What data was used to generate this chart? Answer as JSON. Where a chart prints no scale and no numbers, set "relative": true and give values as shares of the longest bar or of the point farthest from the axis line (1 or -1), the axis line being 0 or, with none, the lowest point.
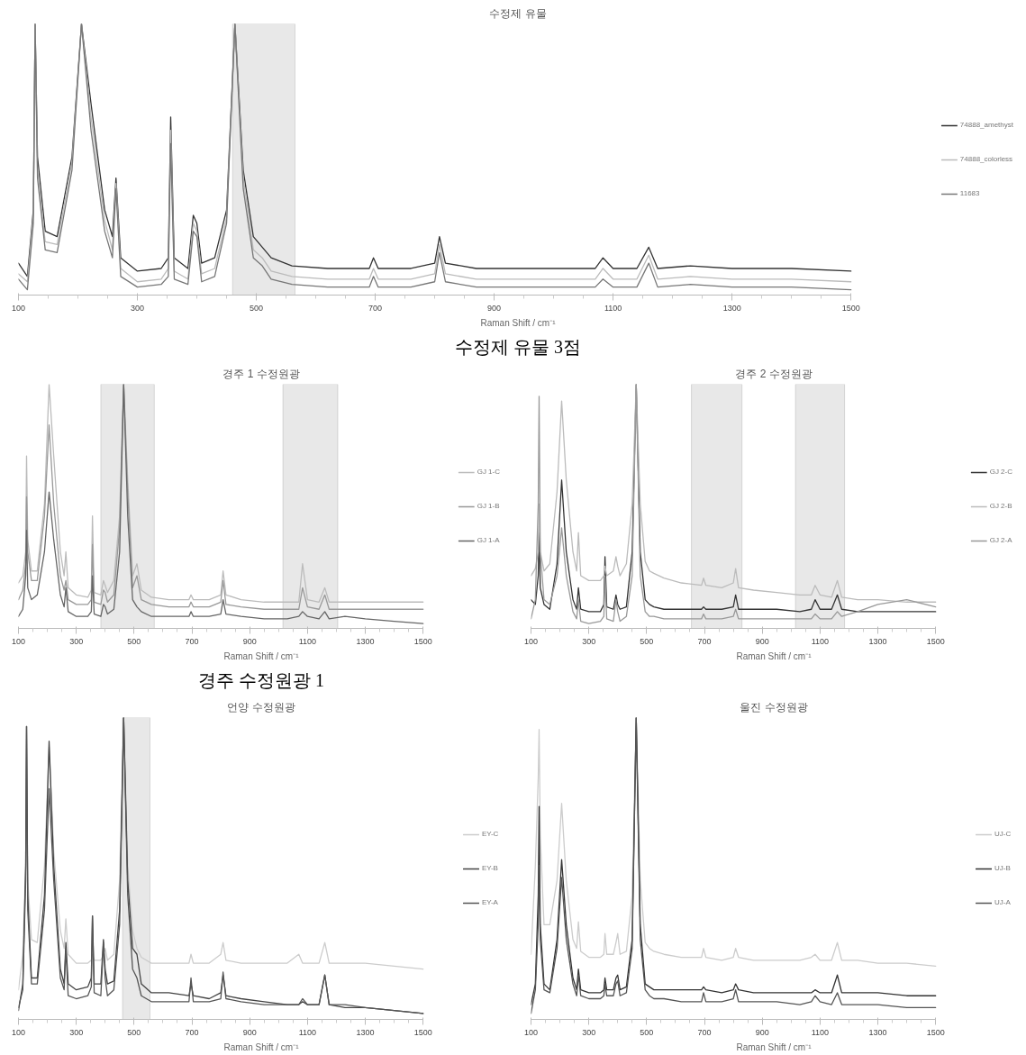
{
  "chart_data": [
    {
      "type": "line",
      "title": "수정제 유물",
      "xlabel": "Raman Shift / cm⁻¹",
      "relative": true,
      "legend": "right",
      "tick_labels": "x",
      "annotations": [
        "수정제 유물 3점"
      ],
      "x": [
        100,
        115,
        125,
        128,
        132,
        145,
        165,
        190,
        206,
        222,
        245,
        258,
        264,
        272,
        300,
        340,
        352,
        356,
        362,
        385,
        394,
        400,
        408,
        430,
        450,
        464,
        478,
        495,
        510,
        525,
        560,
        620,
        690,
        697,
        705,
        760,
        800,
        808,
        818,
        870,
        950,
        1030,
        1070,
        1083,
        1100,
        1140,
        1160,
        1175,
        1230,
        1300,
        1400,
        1500
      ],
      "xlim": [
        100,
        1500
      ],
      "xticks": [
        100,
        300,
        500,
        700,
        900,
        1100,
        1300,
        1500
      ],
      "bands": [
        {
          "axis": "x",
          "from": 460,
          "to": 565,
          "label": null,
          "color": "#cccccc"
        }
      ],
      "series": [
        {
          "name": "74888_amethyst",
          "color": "#333333",
          "values": [
            0.1,
            0.05,
            0.3,
            1,
            0.5,
            0.22,
            0.2,
            0.5,
            1,
            0.7,
            0.3,
            0.2,
            0.42,
            0.12,
            0.07,
            0.08,
            0.12,
            0.65,
            0.12,
            0.08,
            0.28,
            0.25,
            0.1,
            0.12,
            0.3,
            1,
            0.45,
            0.2,
            0.16,
            0.12,
            0.09,
            0.08,
            0.08,
            0.12,
            0.08,
            0.08,
            0.1,
            0.2,
            0.1,
            0.08,
            0.08,
            0.08,
            0.08,
            0.12,
            0.08,
            0.08,
            0.16,
            0.08,
            0.09,
            0.08,
            0.08,
            0.07
          ]
        },
        {
          "name": "74888_colorless",
          "color": "#bbbbbb",
          "values": [
            0.06,
            0.03,
            0.28,
            1,
            0.45,
            0.18,
            0.17,
            0.48,
            1,
            0.65,
            0.26,
            0.15,
            0.4,
            0.08,
            0.03,
            0.04,
            0.08,
            0.6,
            0.07,
            0.04,
            0.25,
            0.22,
            0.06,
            0.08,
            0.27,
            1,
            0.42,
            0.15,
            0.12,
            0.07,
            0.05,
            0.04,
            0.04,
            0.08,
            0.04,
            0.04,
            0.06,
            0.17,
            0.06,
            0.04,
            0.04,
            0.04,
            0.04,
            0.08,
            0.04,
            0.04,
            0.13,
            0.04,
            0.05,
            0.04,
            0.04,
            0.03
          ]
        },
        {
          "name": "11683",
          "color": "#777777",
          "values": [
            0.04,
            0.0,
            0.25,
            1,
            0.42,
            0.15,
            0.14,
            0.45,
            1,
            0.6,
            0.22,
            0.12,
            0.38,
            0.05,
            0.01,
            0.02,
            0.05,
            0.55,
            0.04,
            0.02,
            0.22,
            0.2,
            0.03,
            0.05,
            0.25,
            1,
            0.38,
            0.12,
            0.09,
            0.04,
            0.02,
            0.01,
            0.01,
            0.05,
            0.01,
            0.01,
            0.03,
            0.14,
            0.03,
            0.01,
            0.01,
            0.01,
            0.01,
            0.04,
            0.01,
            0.01,
            0.1,
            0.01,
            0.02,
            0.01,
            0.01,
            0.0
          ]
        }
      ]
    },
    {
      "type": "line",
      "title": "경주 1 수정원광",
      "xlabel": "Raman Shift / cm⁻¹",
      "relative": true,
      "legend": "right",
      "tick_labels": "x",
      "annotations": [
        "경주 수정원광 1"
      ],
      "x": [
        100,
        115,
        125,
        128,
        132,
        145,
        165,
        190,
        206,
        222,
        245,
        258,
        264,
        272,
        300,
        340,
        352,
        356,
        362,
        385,
        394,
        400,
        408,
        430,
        450,
        464,
        478,
        495,
        510,
        525,
        560,
        620,
        690,
        697,
        705,
        760,
        800,
        808,
        818,
        870,
        950,
        1030,
        1070,
        1083,
        1100,
        1140,
        1160,
        1175,
        1230,
        1300,
        1400,
        1500
      ],
      "xlim": [
        100,
        1500
      ],
      "xticks": [
        100,
        300,
        500,
        700,
        900,
        1100,
        1300,
        1500
      ],
      "bands": [
        {
          "axis": "x",
          "from": 385,
          "to": 570,
          "label": null,
          "color": "#cccccc"
        },
        {
          "axis": "x",
          "from": 1015,
          "to": 1205,
          "label": null,
          "color": "#cccccc"
        }
      ],
      "series": [
        {
          "name": "GJ 1-C",
          "color": "#bbbbbb",
          "values": [
            0.17,
            0.2,
            0.3,
            0.7,
            0.35,
            0.22,
            0.22,
            0.5,
            1,
            0.7,
            0.3,
            0.2,
            0.3,
            0.15,
            0.12,
            0.11,
            0.14,
            0.45,
            0.13,
            0.12,
            0.18,
            0.16,
            0.13,
            0.18,
            0.45,
            1,
            0.6,
            0.2,
            0.25,
            0.14,
            0.11,
            0.1,
            0.1,
            0.12,
            0.1,
            0.1,
            0.12,
            0.22,
            0.12,
            0.1,
            0.09,
            0.09,
            0.09,
            0.25,
            0.1,
            0.09,
            0.15,
            0.09,
            0.09,
            0.09,
            0.09,
            0.09
          ]
        },
        {
          "name": "GJ 1-B",
          "color": "#999999",
          "values": [
            0.1,
            0.14,
            0.25,
            0.53,
            0.3,
            0.18,
            0.18,
            0.45,
            0.83,
            0.5,
            0.2,
            0.14,
            0.18,
            0.1,
            0.08,
            0.08,
            0.1,
            0.33,
            0.09,
            0.08,
            0.14,
            0.13,
            0.09,
            0.12,
            0.4,
            1,
            0.55,
            0.15,
            0.2,
            0.1,
            0.08,
            0.07,
            0.07,
            0.09,
            0.07,
            0.07,
            0.09,
            0.18,
            0.08,
            0.07,
            0.06,
            0.06,
            0.06,
            0.15,
            0.07,
            0.06,
            0.12,
            0.06,
            0.06,
            0.06,
            0.06,
            0.06
          ]
        },
        {
          "name": "GJ 1-A",
          "color": "#666666",
          "values": [
            0.03,
            0.06,
            0.2,
            0.39,
            0.15,
            0.1,
            0.12,
            0.3,
            0.55,
            0.35,
            0.12,
            0.07,
            0.15,
            0.05,
            0.03,
            0.03,
            0.05,
            0.2,
            0.04,
            0.03,
            0.08,
            0.07,
            0.04,
            0.06,
            0.3,
            1,
            0.45,
            0.1,
            0.07,
            0.05,
            0.03,
            0.03,
            0.03,
            0.05,
            0.03,
            0.03,
            0.04,
            0.1,
            0.04,
            0.03,
            0.02,
            0.02,
            0.03,
            0.05,
            0.03,
            0.02,
            0.05,
            0.02,
            0.03,
            0.02,
            0.01,
            0.0
          ]
        }
      ]
    },
    {
      "type": "line",
      "title": "경주 2 수정원광",
      "xlabel": "Raman Shift / cm⁻¹",
      "relative": true,
      "legend": "right",
      "tick_labels": "x",
      "x": [
        100,
        115,
        125,
        128,
        132,
        145,
        165,
        190,
        206,
        222,
        245,
        258,
        264,
        272,
        300,
        340,
        352,
        356,
        362,
        385,
        394,
        400,
        408,
        430,
        450,
        464,
        478,
        495,
        510,
        525,
        560,
        620,
        690,
        697,
        705,
        760,
        800,
        808,
        818,
        870,
        950,
        1030,
        1070,
        1083,
        1100,
        1140,
        1160,
        1175,
        1230,
        1300,
        1400,
        1500
      ],
      "xlim": [
        100,
        1500
      ],
      "xticks": [
        100,
        300,
        500,
        700,
        900,
        1100,
        1300,
        1500
      ],
      "bands": [
        {
          "axis": "x",
          "from": 655,
          "to": 830,
          "label": null,
          "color": "#cccccc"
        },
        {
          "axis": "x",
          "from": 1015,
          "to": 1185,
          "label": null,
          "color": "#cccccc"
        }
      ],
      "series": [
        {
          "name": "GJ 2-C",
          "color": "#333333",
          "values": [
            0.1,
            0.08,
            0.2,
            0.39,
            0.15,
            0.08,
            0.06,
            0.25,
            0.6,
            0.3,
            0.1,
            0.06,
            0.15,
            0.06,
            0.05,
            0.05,
            0.08,
            0.28,
            0.07,
            0.06,
            0.12,
            0.08,
            0.06,
            0.07,
            0.3,
            1,
            0.3,
            0.1,
            0.08,
            0.07,
            0.06,
            0.06,
            0.06,
            0.07,
            0.06,
            0.06,
            0.07,
            0.12,
            0.06,
            0.06,
            0.06,
            0.05,
            0.06,
            0.1,
            0.06,
            0.06,
            0.12,
            0.06,
            0.05,
            0.05,
            0.05,
            0.05
          ]
        },
        {
          "name": "GJ 2-B",
          "color": "#bbbbbb",
          "values": [
            0.2,
            0.23,
            0.3,
            0.5,
            0.3,
            0.22,
            0.25,
            0.55,
            0.93,
            0.6,
            0.3,
            0.22,
            0.38,
            0.2,
            0.18,
            0.18,
            0.2,
            0.24,
            0.2,
            0.22,
            0.28,
            0.24,
            0.2,
            0.25,
            0.5,
            1,
            0.5,
            0.26,
            0.22,
            0.21,
            0.19,
            0.17,
            0.16,
            0.19,
            0.16,
            0.15,
            0.17,
            0.23,
            0.15,
            0.14,
            0.13,
            0.12,
            0.12,
            0.16,
            0.12,
            0.11,
            0.18,
            0.11,
            0.1,
            0.1,
            0.09,
            0.09
          ]
        },
        {
          "name": "GJ 2-A",
          "color": "#999999",
          "values": [
            0.02,
            0.1,
            0.5,
            0.95,
            0.3,
            0.1,
            0.08,
            0.2,
            0.4,
            0.2,
            0.05,
            0.02,
            0.1,
            0.01,
            0.0,
            0.01,
            0.03,
            0.2,
            0.02,
            0.01,
            0.1,
            0.05,
            0.01,
            0.03,
            0.2,
            1,
            0.2,
            0.05,
            0.03,
            0.03,
            0.02,
            0.02,
            0.02,
            0.04,
            0.02,
            0.02,
            0.03,
            0.06,
            0.02,
            0.02,
            0.02,
            0.02,
            0.02,
            0.04,
            0.02,
            0.02,
            0.05,
            0.03,
            0.05,
            0.08,
            0.1,
            0.07
          ]
        }
      ]
    },
    {
      "type": "line",
      "title": "언양 수정원광",
      "xlabel": "Raman Shift / cm⁻¹",
      "relative": true,
      "legend": "right",
      "tick_labels": "x",
      "x": [
        100,
        115,
        125,
        128,
        132,
        145,
        165,
        190,
        206,
        222,
        245,
        258,
        264,
        272,
        300,
        340,
        352,
        356,
        362,
        385,
        394,
        400,
        408,
        430,
        450,
        464,
        478,
        495,
        510,
        525,
        560,
        620,
        690,
        697,
        705,
        760,
        800,
        808,
        818,
        870,
        950,
        1030,
        1070,
        1083,
        1100,
        1140,
        1160,
        1175,
        1230,
        1300,
        1400,
        1500
      ],
      "xlim": [
        100,
        1500
      ],
      "xticks": [
        100,
        300,
        500,
        700,
        900,
        1100,
        1300,
        1500
      ],
      "bands": [
        {
          "axis": "x",
          "from": 460,
          "to": 555,
          "label": null,
          "color": "#cccccc"
        }
      ],
      "series": [
        {
          "name": "EY-C",
          "color": "#cccccc",
          "values": [
            0.08,
            0.2,
            0.5,
            0.97,
            0.45,
            0.25,
            0.24,
            0.5,
            0.9,
            0.55,
            0.28,
            0.22,
            0.32,
            0.2,
            0.17,
            0.17,
            0.18,
            0.2,
            0.18,
            0.18,
            0.2,
            0.22,
            0.18,
            0.2,
            0.45,
            1,
            0.5,
            0.28,
            0.22,
            0.19,
            0.17,
            0.17,
            0.17,
            0.2,
            0.17,
            0.17,
            0.2,
            0.24,
            0.18,
            0.17,
            0.17,
            0.17,
            0.2,
            0.17,
            0.17,
            0.17,
            0.24,
            0.17,
            0.17,
            0.17,
            0.16,
            0.15
          ]
        },
        {
          "name": "EY-B",
          "color": "#444444",
          "values": [
            0.01,
            0.1,
            0.5,
            0.97,
            0.4,
            0.12,
            0.12,
            0.4,
            0.92,
            0.5,
            0.15,
            0.1,
            0.24,
            0.1,
            0.08,
            0.09,
            0.12,
            0.33,
            0.1,
            0.1,
            0.25,
            0.15,
            0.1,
            0.11,
            0.35,
            1,
            0.45,
            0.22,
            0.2,
            0.1,
            0.07,
            0.07,
            0.06,
            0.1,
            0.06,
            0.05,
            0.07,
            0.13,
            0.06,
            0.05,
            0.04,
            0.03,
            0.03,
            0.04,
            0.03,
            0.03,
            0.13,
            0.03,
            0.02,
            0.02,
            0.01,
            0.0
          ]
        },
        {
          "name": "EY-A",
          "color": "#555555",
          "values": [
            0.02,
            0.08,
            0.45,
            0.97,
            0.35,
            0.1,
            0.1,
            0.35,
            0.76,
            0.45,
            0.12,
            0.08,
            0.22,
            0.06,
            0.05,
            0.06,
            0.09,
            0.33,
            0.07,
            0.06,
            0.24,
            0.12,
            0.06,
            0.08,
            0.3,
            1,
            0.4,
            0.15,
            0.12,
            0.06,
            0.04,
            0.04,
            0.04,
            0.12,
            0.04,
            0.04,
            0.05,
            0.14,
            0.05,
            0.04,
            0.03,
            0.03,
            0.03,
            0.05,
            0.03,
            0.03,
            0.13,
            0.03,
            0.03,
            0.02,
            0.01,
            0.0
          ]
        }
      ]
    },
    {
      "type": "line",
      "title": "울진 수정원광",
      "xlabel": "Raman Shift / cm⁻¹",
      "relative": true,
      "legend": "right",
      "tick_labels": "x",
      "x": [
        100,
        115,
        125,
        128,
        132,
        145,
        165,
        190,
        206,
        222,
        245,
        258,
        264,
        272,
        300,
        340,
        352,
        356,
        362,
        385,
        394,
        400,
        408,
        430,
        450,
        464,
        478,
        495,
        510,
        525,
        560,
        620,
        690,
        697,
        705,
        760,
        800,
        808,
        818,
        870,
        950,
        1030,
        1070,
        1083,
        1100,
        1140,
        1160,
        1175,
        1230,
        1300,
        1400,
        1500
      ],
      "xlim": [
        100,
        1500
      ],
      "xticks": [
        100,
        300,
        500,
        700,
        900,
        1100,
        1300,
        1500
      ],
      "series": [
        {
          "name": "UJ-C",
          "color": "#cccccc",
          "values": [
            0.2,
            0.5,
            0.8,
            0.96,
            0.6,
            0.3,
            0.3,
            0.45,
            0.71,
            0.45,
            0.25,
            0.22,
            0.31,
            0.21,
            0.19,
            0.19,
            0.2,
            0.27,
            0.2,
            0.2,
            0.24,
            0.27,
            0.2,
            0.21,
            0.4,
            1,
            0.45,
            0.24,
            0.22,
            0.21,
            0.2,
            0.19,
            0.19,
            0.22,
            0.19,
            0.18,
            0.19,
            0.22,
            0.19,
            0.18,
            0.18,
            0.18,
            0.19,
            0.2,
            0.18,
            0.18,
            0.24,
            0.18,
            0.18,
            0.17,
            0.17,
            0.16
          ]
        },
        {
          "name": "UJ-B",
          "color": "#333333",
          "values": [
            0.03,
            0.1,
            0.4,
            0.7,
            0.3,
            0.1,
            0.08,
            0.25,
            0.52,
            0.3,
            0.12,
            0.08,
            0.15,
            0.08,
            0.07,
            0.07,
            0.08,
            0.12,
            0.08,
            0.08,
            0.12,
            0.13,
            0.08,
            0.09,
            0.25,
            1,
            0.3,
            0.1,
            0.09,
            0.08,
            0.08,
            0.08,
            0.08,
            0.09,
            0.08,
            0.07,
            0.08,
            0.1,
            0.08,
            0.07,
            0.07,
            0.07,
            0.07,
            0.08,
            0.07,
            0.07,
            0.13,
            0.07,
            0.07,
            0.07,
            0.06,
            0.06
          ]
        },
        {
          "name": "UJ-A",
          "color": "#555555",
          "values": [
            0.0,
            0.08,
            0.3,
            0.5,
            0.25,
            0.08,
            0.07,
            0.22,
            0.46,
            0.25,
            0.1,
            0.06,
            0.13,
            0.06,
            0.05,
            0.05,
            0.06,
            0.1,
            0.06,
            0.06,
            0.1,
            0.11,
            0.06,
            0.07,
            0.22,
            1,
            0.25,
            0.08,
            0.06,
            0.05,
            0.05,
            0.04,
            0.04,
            0.07,
            0.04,
            0.04,
            0.05,
            0.08,
            0.04,
            0.04,
            0.04,
            0.03,
            0.04,
            0.06,
            0.04,
            0.03,
            0.07,
            0.03,
            0.03,
            0.03,
            0.02,
            0.02
          ]
        }
      ]
    }
  ]
}
